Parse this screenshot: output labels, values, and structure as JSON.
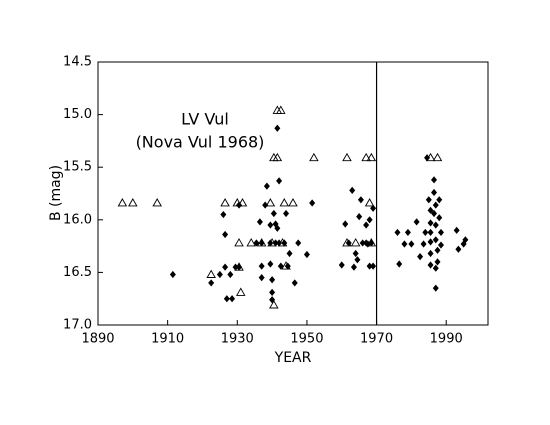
{
  "chart_data": {
    "type": "scatter",
    "annotations": [
      "LV Vul",
      "(Nova Vul 1968)"
    ],
    "xlabel": "YEAR",
    "ylabel": "B (mag)",
    "xlim": [
      1890,
      2002
    ],
    "xticks": [
      1890,
      1910,
      1930,
      1950,
      1970,
      1990
    ],
    "ylim": [
      17,
      14.5
    ],
    "yticks": [
      14.5,
      {
        "value": 15,
        "label": "15.0"
      },
      15.5,
      {
        "value": 16,
        "label": "16.0"
      },
      16.5,
      {
        "value": 17,
        "label": "17.0"
      }
    ],
    "vline": 1970,
    "grid": false,
    "series": [
      {
        "marker": "diamond",
        "color": "#000000",
        "x": [
          1911.5,
          1922.5,
          1925,
          1926.5,
          1926,
          1927,
          1928.5,
          1928,
          1929.5,
          1930.5,
          1926.5,
          1930.5,
          1935.5,
          1936.5,
          1937,
          1937,
          1937,
          1938,
          1938.5,
          1939.5,
          1939.5,
          1939.5,
          1940,
          1940,
          1940,
          1940.5,
          1941,
          1941,
          1941.5,
          1941.5,
          1942,
          1942,
          1942.5,
          1943.5,
          1944,
          1944.5,
          1945,
          1946.5,
          1947.5,
          1950,
          1951.5,
          1960,
          1961,
          1962,
          1963,
          1963.5,
          1964,
          1964.5,
          1965,
          1965.5,
          1966,
          1967,
          1967,
          1967.5,
          1968,
          1968,
          1968.5,
          1969,
          1969,
          1976,
          1976.5,
          1978,
          1979,
          1980,
          1981.5,
          1982.5,
          1983.5,
          1984,
          1984.5,
          1985,
          1985.5,
          1985.5,
          1985.5,
          1985.5,
          1985.5,
          1985.5,
          1986.5,
          1986.5,
          1986.5,
          1987,
          1987,
          1987,
          1987,
          1987,
          1987.5,
          1987.5,
          1988,
          1988,
          1988.5,
          1988.5,
          1993,
          1993.5,
          1995,
          1995.5
        ],
        "values": [
          16.52,
          16.6,
          16.52,
          16.45,
          15.95,
          16.75,
          16.75,
          16.52,
          16.45,
          16.45,
          16.14,
          15.86,
          16.22,
          16.02,
          16.22,
          16.44,
          16.55,
          15.86,
          15.68,
          16.05,
          16.22,
          16.42,
          16.57,
          16.69,
          16.76,
          15.94,
          16.04,
          16.22,
          15.13,
          16.08,
          16.22,
          15.63,
          16.44,
          16.22,
          15.94,
          16.44,
          16.32,
          16.6,
          16.22,
          16.33,
          15.84,
          16.43,
          16.04,
          16.22,
          15.72,
          16.45,
          16.32,
          16.38,
          15.97,
          15.81,
          16.22,
          16.05,
          16.22,
          16.23,
          16.0,
          16.44,
          16.22,
          16.44,
          15.89,
          16.12,
          16.42,
          16.23,
          16.12,
          16.23,
          16.02,
          16.35,
          16.23,
          16.12,
          15.41,
          15.81,
          15.91,
          16.03,
          16.12,
          16.21,
          16.32,
          16.43,
          15.62,
          15.74,
          15.94,
          15.86,
          16.05,
          16.19,
          16.46,
          16.65,
          16.29,
          16.4,
          15.81,
          15.98,
          16.12,
          16.24,
          16.1,
          16.28,
          16.23,
          16.19
        ]
      },
      {
        "marker": "triangle-open",
        "color": "#000000",
        "x": [
          1897,
          1900,
          1907,
          1922.5,
          1926.5,
          1930,
          1931.5,
          1930.5,
          1930.5,
          1931,
          1934,
          1937,
          1939.5,
          1940,
          1940.5,
          1940.5,
          1941.5,
          1941.5,
          1942.5,
          1943.5,
          1943,
          1946,
          1944,
          1952,
          1961.5,
          1961.5,
          1964,
          1967,
          1968.5,
          1968,
          1968.5,
          1985.5,
          1987.5
        ],
        "values": [
          15.84,
          15.84,
          15.84,
          16.52,
          15.84,
          15.84,
          15.84,
          16.22,
          16.45,
          16.69,
          16.22,
          16.22,
          15.84,
          16.22,
          16.81,
          15.41,
          15.41,
          14.96,
          14.96,
          15.84,
          16.22,
          15.84,
          16.44,
          15.41,
          15.41,
          16.22,
          16.22,
          15.41,
          15.41,
          15.84,
          16.22,
          15.41,
          15.41
        ]
      }
    ]
  }
}
